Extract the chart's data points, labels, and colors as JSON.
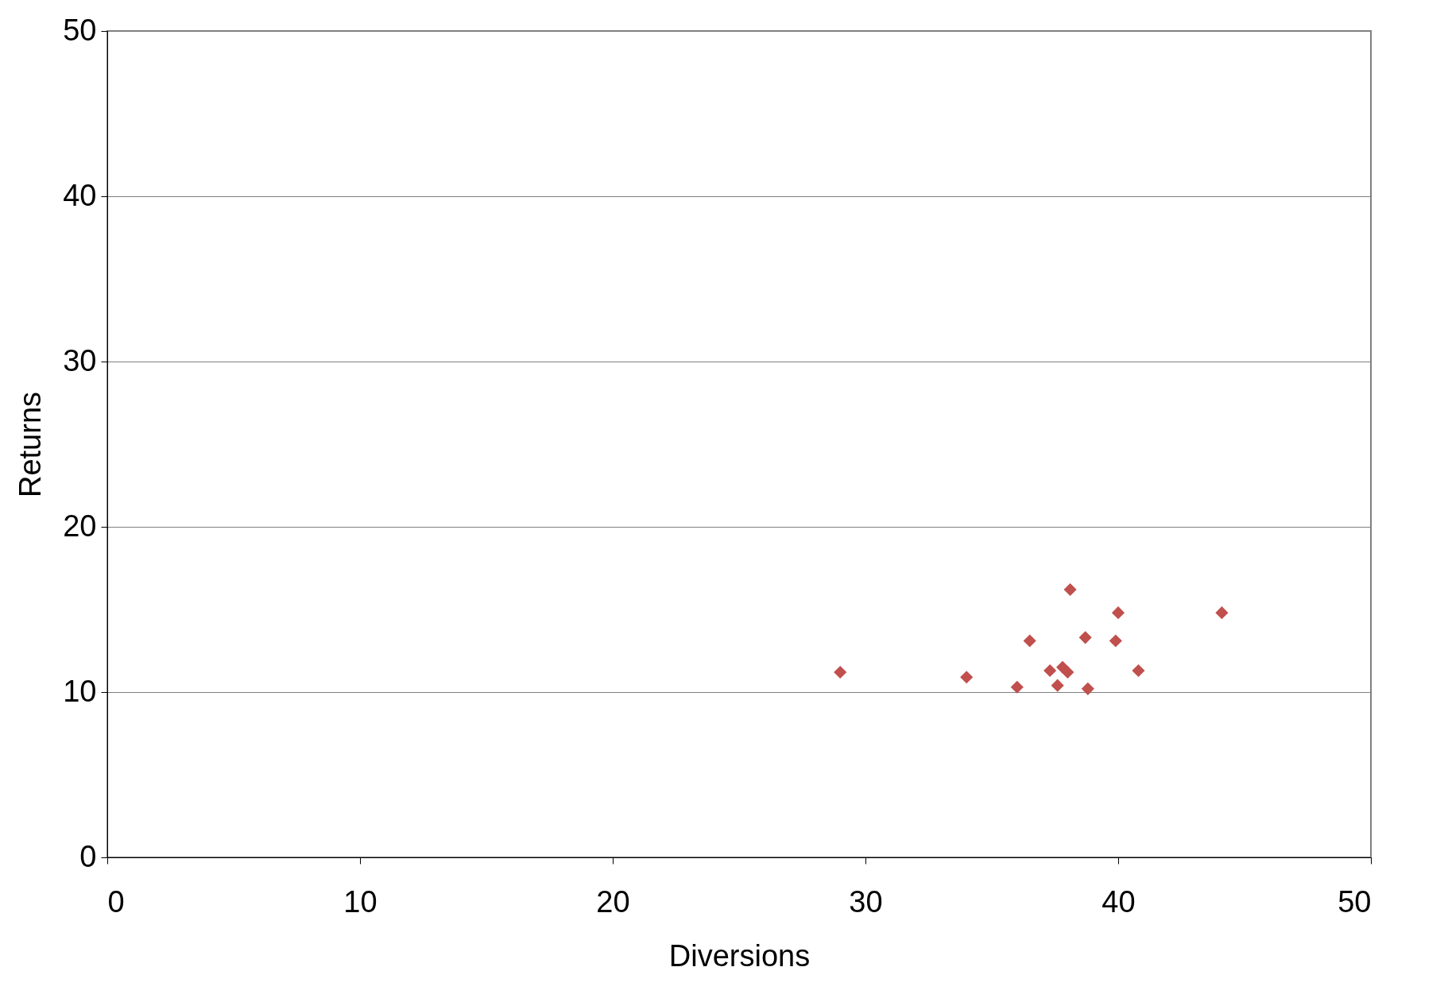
{
  "chart_data": {
    "type": "scatter",
    "xlabel": "Diversions",
    "ylabel": "Returns",
    "x": [
      29.0,
      34.0,
      36.0,
      36.5,
      37.3,
      37.6,
      37.8,
      38.0,
      38.1,
      38.7,
      38.8,
      39.9,
      40.0,
      40.8,
      44.1
    ],
    "series": [
      {
        "color": "#c0504d",
        "values": [
          11.2,
          10.9,
          10.3,
          13.1,
          11.3,
          10.4,
          11.5,
          11.2,
          16.2,
          13.3,
          10.2,
          13.1,
          14.8,
          11.3,
          14.8
        ]
      }
    ],
    "xlim": [
      0,
      50
    ],
    "xticks": [
      0,
      10,
      20,
      30,
      40,
      50
    ],
    "ylim": [
      0,
      50
    ],
    "yticks": [
      0,
      10,
      20,
      30,
      40,
      50
    ],
    "grid": "y",
    "marker": "diamond",
    "legend": false
  }
}
